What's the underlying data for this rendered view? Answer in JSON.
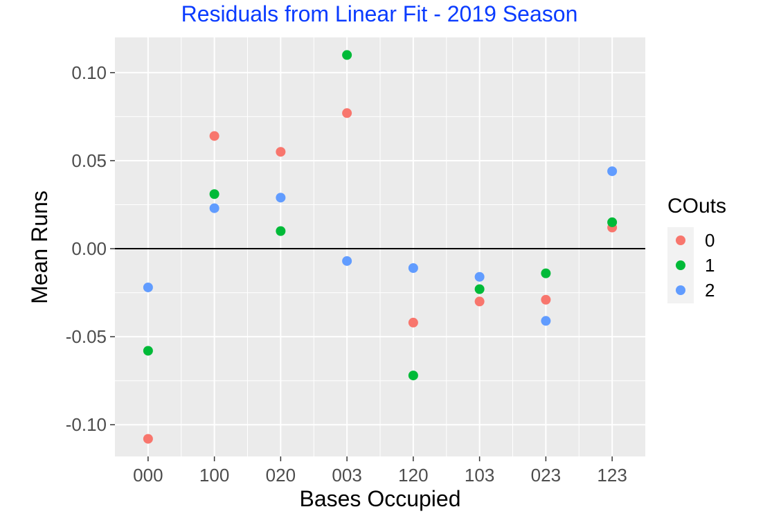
{
  "chart_data": {
    "type": "scatter",
    "title": "Residuals from Linear Fit - 2019 Season",
    "xlabel": "Bases Occupied",
    "ylabel": "Mean Runs",
    "categories": [
      "000",
      "100",
      "020",
      "003",
      "120",
      "103",
      "023",
      "123"
    ],
    "ylim": [
      -0.118,
      0.12
    ],
    "yticks": [
      0.1,
      0.05,
      0.0,
      -0.05,
      -0.1
    ],
    "ytick_labels": [
      "0.10",
      "0.05",
      "0.00",
      "-0.05",
      "-0.10"
    ],
    "reference_line": 0,
    "grid": true,
    "legend": {
      "title": "COuts",
      "position": "right"
    },
    "series": [
      {
        "name": "0",
        "color": "#f8766d",
        "values": [
          -0.108,
          0.064,
          0.055,
          0.077,
          -0.042,
          -0.03,
          -0.029,
          0.012
        ]
      },
      {
        "name": "1",
        "color": "#00ba38",
        "values": [
          -0.058,
          0.031,
          0.01,
          0.11,
          -0.072,
          -0.023,
          -0.014,
          0.015
        ]
      },
      {
        "name": "2",
        "color": "#619cff",
        "values": [
          -0.022,
          0.023,
          0.029,
          -0.007,
          -0.011,
          -0.016,
          -0.041,
          0.044
        ]
      }
    ]
  }
}
